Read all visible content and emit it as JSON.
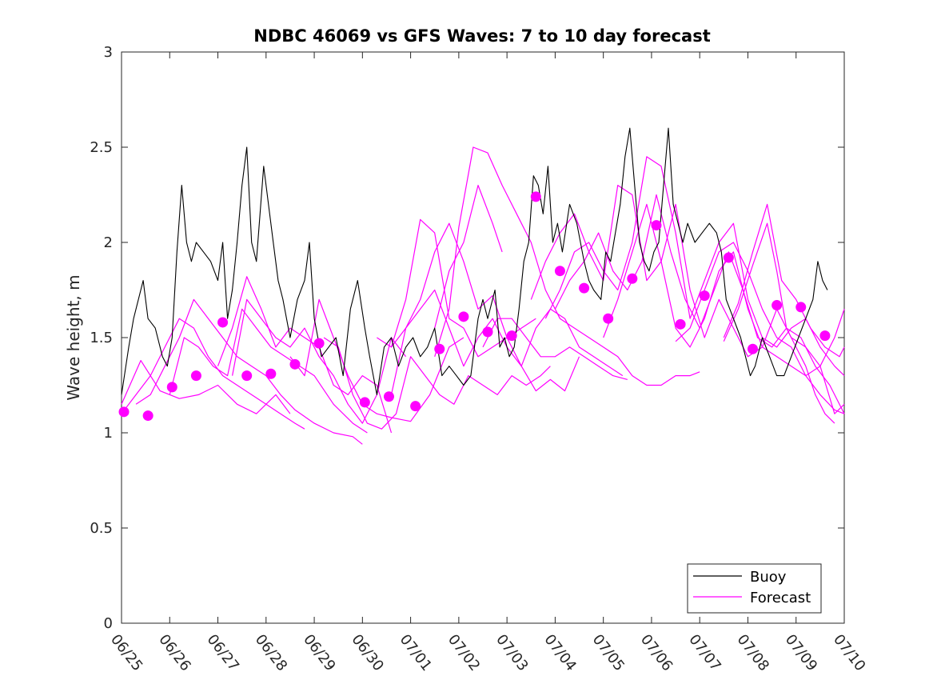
{
  "chart_data": {
    "type": "line",
    "title": "NDBC 46069 vs GFS Waves: 7 to 10 day forecast",
    "ylabel": "Wave height, m",
    "xlabel": "",
    "ylim": [
      0,
      3
    ],
    "xlim": [
      "06/25",
      "07/10"
    ],
    "y_ticks": [
      "0",
      "0.5",
      "1",
      "1.5",
      "2",
      "2.5",
      "3"
    ],
    "x_ticks": [
      "06/25",
      "06/26",
      "06/27",
      "06/28",
      "06/29",
      "06/30",
      "07/01",
      "07/02",
      "07/03",
      "07/04",
      "07/05",
      "07/06",
      "07/07",
      "07/08",
      "07/09",
      "07/10"
    ],
    "grid": false,
    "legend_position": "bottom-right",
    "legend": [
      "Buoy",
      "Forecast"
    ],
    "colors": {
      "buoy": "#000000",
      "forecast": "#ff00ff",
      "axis": "#262626"
    },
    "series": [
      {
        "name": "Buoy",
        "x": [
          0.0,
          0.15,
          0.25,
          0.35,
          0.45,
          0.55,
          0.7,
          0.85,
          0.95,
          1.05,
          1.15,
          1.25,
          1.35,
          1.45,
          1.55,
          1.7,
          1.85,
          2.0,
          2.1,
          2.2,
          2.3,
          2.4,
          2.5,
          2.6,
          2.7,
          2.8,
          2.95,
          3.05,
          3.15,
          3.25,
          3.35,
          3.5,
          3.65,
          3.8,
          3.9,
          4.0,
          4.15,
          4.3,
          4.45,
          4.6,
          4.75,
          4.9,
          5.05,
          5.15,
          5.3,
          5.45,
          5.6,
          5.75,
          5.9,
          6.05,
          6.2,
          6.35,
          6.5,
          6.65,
          6.8,
          6.95,
          7.1,
          7.25,
          7.4,
          7.5,
          7.6,
          7.75,
          7.85,
          7.95,
          8.05,
          8.15,
          8.25,
          8.35,
          8.45,
          8.55,
          8.65,
          8.75,
          8.85,
          8.95,
          9.05,
          9.15,
          9.3,
          9.45,
          9.6,
          9.7,
          9.8,
          9.95,
          10.05,
          10.15,
          10.25,
          10.35,
          10.45,
          10.55,
          10.65,
          10.75,
          10.85,
          10.95,
          11.05,
          11.15,
          11.25,
          11.35,
          11.45,
          11.55,
          11.65,
          11.75,
          11.9,
          12.05,
          12.2,
          12.35,
          12.45,
          12.55,
          12.7,
          12.85,
          12.95,
          13.05,
          13.15,
          13.3,
          13.45,
          13.6,
          13.75,
          13.9,
          14.05,
          14.2,
          14.35,
          14.45,
          14.55,
          14.65
        ],
        "values": [
          1.2,
          1.45,
          1.6,
          1.7,
          1.8,
          1.6,
          1.55,
          1.4,
          1.35,
          1.5,
          1.95,
          2.3,
          2.0,
          1.9,
          2.0,
          1.95,
          1.9,
          1.8,
          2.0,
          1.6,
          1.75,
          2.0,
          2.3,
          2.5,
          2.0,
          1.9,
          2.4,
          2.2,
          2.0,
          1.8,
          1.7,
          1.5,
          1.7,
          1.8,
          2.0,
          1.6,
          1.4,
          1.45,
          1.5,
          1.3,
          1.65,
          1.8,
          1.55,
          1.4,
          1.2,
          1.45,
          1.5,
          1.35,
          1.45,
          1.5,
          1.4,
          1.45,
          1.55,
          1.3,
          1.35,
          1.3,
          1.25,
          1.3,
          1.6,
          1.7,
          1.6,
          1.75,
          1.45,
          1.5,
          1.4,
          1.45,
          1.65,
          1.9,
          2.0,
          2.35,
          2.3,
          2.15,
          2.4,
          2.0,
          2.1,
          1.95,
          2.2,
          2.1,
          1.9,
          1.8,
          1.75,
          1.7,
          1.95,
          1.9,
          2.05,
          2.2,
          2.45,
          2.6,
          2.3,
          2.0,
          1.9,
          1.85,
          1.95,
          2.0,
          2.3,
          2.6,
          2.2,
          2.1,
          2.0,
          2.1,
          2.0,
          2.05,
          2.1,
          2.05,
          1.95,
          1.7,
          1.6,
          1.5,
          1.4,
          1.3,
          1.35,
          1.5,
          1.4,
          1.3,
          1.3,
          1.4,
          1.5,
          1.6,
          1.7,
          1.9,
          1.8,
          1.75
        ]
      },
      {
        "name": "Forecast",
        "segments": [
          {
            "x": [
              0.0,
              0.3,
              0.6,
              0.9,
              1.2,
              1.5,
              1.8,
              2.1,
              2.4,
              2.7,
              3.0,
              3.3,
              3.6,
              3.8
            ],
            "values": [
              1.1,
              1.2,
              1.3,
              1.45,
              1.6,
              1.55,
              1.4,
              1.3,
              1.25,
              1.2,
              1.15,
              1.1,
              1.05,
              1.02
            ]
          },
          {
            "x": [
              0.0,
              0.4,
              0.8,
              1.2,
              1.6,
              2.0,
              2.4,
              2.8,
              3.2,
              3.5
            ],
            "values": [
              1.15,
              1.38,
              1.22,
              1.18,
              1.2,
              1.25,
              1.15,
              1.1,
              1.2,
              1.1
            ]
          },
          {
            "x": [
              0.3,
              0.6,
              0.9,
              1.2,
              1.5,
              1.8,
              2.1,
              2.4,
              2.7,
              3.0,
              3.3,
              3.6,
              4.0,
              4.4,
              4.8,
              5.0
            ],
            "values": [
              1.15,
              1.2,
              1.35,
              1.5,
              1.7,
              1.6,
              1.5,
              1.4,
              1.35,
              1.3,
              1.2,
              1.12,
              1.05,
              1.0,
              0.98,
              0.94
            ]
          },
          {
            "x": [
              1.0,
              1.3,
              1.6,
              1.9,
              2.2,
              2.5,
              2.8,
              3.1,
              3.4,
              3.7,
              4.0,
              4.4,
              4.8,
              5.1
            ],
            "values": [
              1.2,
              1.5,
              1.45,
              1.35,
              1.3,
              1.65,
              1.55,
              1.45,
              1.4,
              1.35,
              1.3,
              1.15,
              1.05,
              1.0
            ]
          },
          {
            "x": [
              2.0,
              2.3,
              2.6,
              2.9,
              3.2,
              3.5,
              3.8,
              4.1,
              4.4,
              4.7,
              5.0,
              5.3,
              5.6
            ],
            "values": [
              1.35,
              1.55,
              1.82,
              1.65,
              1.45,
              1.55,
              1.5,
              1.45,
              1.25,
              1.2,
              1.3,
              1.25,
              1.0
            ]
          },
          {
            "x": [
              2.3,
              2.6,
              2.9,
              3.2,
              3.5,
              3.8,
              4.1,
              4.4,
              4.7,
              5.0,
              5.3,
              5.6,
              5.9
            ],
            "values": [
              1.3,
              1.7,
              1.6,
              1.5,
              1.45,
              1.55,
              1.4,
              1.3,
              1.15,
              1.05,
              1.2,
              1.5,
              1.4
            ]
          },
          {
            "x": [
              3.5,
              3.8,
              4.1,
              4.4,
              4.7,
              5.0,
              5.3,
              5.6,
              6.0,
              6.4,
              6.8,
              7.1
            ],
            "values": [
              1.4,
              1.3,
              1.7,
              1.5,
              1.3,
              1.15,
              1.1,
              1.08,
              1.06,
              1.2,
              1.45,
              1.5
            ]
          },
          {
            "x": [
              4.2,
              4.5,
              4.8,
              5.1,
              5.4,
              5.7,
              6.0,
              6.3,
              6.6,
              6.9,
              7.2,
              7.5,
              7.8,
              8.1,
              8.4,
              8.7,
              8.9
            ],
            "values": [
              1.5,
              1.45,
              1.2,
              1.05,
              1.02,
              1.1,
              1.4,
              1.3,
              1.2,
              1.15,
              1.3,
              1.25,
              1.2,
              1.3,
              1.25,
              1.3,
              1.35
            ]
          },
          {
            "x": [
              5.3,
              5.6,
              5.9,
              6.2,
              6.5,
              6.8,
              7.1,
              7.4,
              7.7,
              8.0,
              8.3,
              8.6,
              8.9,
              9.2,
              9.5
            ],
            "values": [
              1.5,
              1.45,
              1.7,
              2.12,
              2.05,
              1.6,
              1.55,
              1.4,
              1.45,
              1.5,
              1.35,
              1.22,
              1.28,
              1.22,
              1.4
            ]
          },
          {
            "x": [
              5.6,
              5.9,
              6.2,
              6.5,
              6.8,
              7.1,
              7.4,
              7.7,
              8.0,
              8.3,
              8.6,
              8.9,
              9.2,
              9.5,
              9.8,
              10.1,
              10.4
            ],
            "values": [
              1.45,
              1.55,
              1.65,
              1.75,
              1.55,
              1.35,
              1.5,
              1.6,
              1.45,
              1.35,
              1.55,
              1.65,
              1.6,
              1.45,
              1.4,
              1.35,
              1.3
            ]
          },
          {
            "x": [
              5.6,
              5.9,
              6.2,
              6.5,
              6.8,
              7.1,
              7.4,
              7.7,
              8.0,
              8.3,
              8.6
            ],
            "values": [
              1.2,
              1.55,
              1.7,
              1.95,
              2.1,
              1.9,
              1.65,
              1.72,
              1.5,
              1.55,
              1.6
            ]
          },
          {
            "x": [
              6.5,
              6.8,
              7.0,
              7.3,
              7.6,
              7.9,
              8.2,
              8.5,
              8.8,
              9.1,
              9.4,
              9.7,
              10.0,
              10.3,
              10.6,
              10.9,
              11.2,
              11.5,
              11.8,
              12.0
            ],
            "values": [
              1.4,
              1.65,
              2.08,
              2.5,
              2.47,
              2.3,
              2.15,
              2.0,
              1.75,
              1.6,
              1.55,
              1.5,
              1.45,
              1.4,
              1.3,
              1.25,
              1.25,
              1.3,
              1.3,
              1.32
            ]
          },
          {
            "x": [
              6.5,
              6.8,
              7.1,
              7.4,
              7.7,
              7.9
            ],
            "values": [
              1.55,
              1.85,
              2.0,
              2.3,
              2.1,
              1.95
            ]
          },
          {
            "x": [
              7.5,
              7.8,
              8.1,
              8.4,
              8.7,
              9.0,
              9.3,
              9.6,
              9.9,
              10.2,
              10.5
            ],
            "values": [
              1.45,
              1.6,
              1.6,
              1.5,
              1.4,
              1.4,
              1.45,
              1.4,
              1.35,
              1.3,
              1.28
            ]
          },
          {
            "x": [
              8.5,
              8.8,
              9.1,
              9.4,
              9.7,
              10.0,
              10.3,
              10.6,
              10.9,
              11.2,
              11.5,
              11.8,
              12.1,
              12.4,
              12.7,
              13.0,
              13.3,
              13.6,
              13.9,
              14.2,
              14.5,
              14.8,
              15.0
            ],
            "values": [
              1.7,
              1.9,
              2.05,
              2.15,
              1.95,
              1.8,
              2.3,
              2.25,
              1.8,
              1.9,
              2.2,
              1.75,
              1.5,
              1.7,
              1.55,
              1.4,
              1.45,
              1.65,
              1.5,
              1.45,
              1.35,
              1.1,
              1.15
            ]
          },
          {
            "x": [
              8.8,
              9.1,
              9.4,
              9.7,
              10.0,
              10.3,
              10.6,
              10.9,
              11.2,
              11.5,
              11.8,
              12.1,
              12.4,
              12.7,
              13.0,
              13.3,
              13.6,
              13.9,
              14.2,
              14.5,
              14.8,
              15.0
            ],
            "values": [
              1.6,
              1.75,
              1.95,
              2.0,
              1.85,
              1.75,
              2.0,
              2.45,
              2.4,
              2.05,
              1.6,
              1.8,
              2.0,
              2.1,
              1.7,
              1.5,
              1.45,
              1.55,
              1.6,
              1.45,
              1.35,
              1.3
            ]
          },
          {
            "x": [
              9.0,
              9.3,
              9.6,
              9.9,
              10.2,
              10.5,
              10.8,
              11.1,
              11.4,
              11.7,
              12.0,
              12.3,
              12.6,
              12.9,
              13.2,
              13.5,
              13.8,
              14.1,
              14.4,
              14.7,
              15.0
            ],
            "values": [
              1.65,
              1.8,
              1.9,
              2.05,
              1.85,
              1.75,
              1.9,
              2.25,
              1.95,
              1.7,
              1.55,
              1.75,
              1.95,
              1.75,
              1.5,
              1.45,
              1.55,
              1.5,
              1.35,
              1.25,
              1.1
            ]
          },
          {
            "x": [
              10.0,
              10.3,
              10.6,
              10.9,
              11.2,
              11.5,
              11.8,
              12.1,
              12.4,
              12.7,
              13.0,
              13.3,
              13.6,
              13.9,
              14.2,
              14.5,
              14.8,
              15.0
            ],
            "values": [
              1.5,
              1.7,
              1.95,
              2.2,
              1.9,
              1.55,
              1.45,
              1.6,
              1.85,
              1.95,
              1.65,
              1.45,
              1.4,
              1.35,
              1.3,
              1.35,
              1.5,
              1.65
            ]
          },
          {
            "x": [
              11.5,
              11.8,
              12.1,
              12.4,
              12.7,
              13.0,
              13.3,
              13.6,
              13.9,
              14.2,
              14.5,
              14.8,
              15.0
            ],
            "values": [
              1.48,
              1.55,
              1.75,
              1.95,
              2.0,
              1.85,
              1.65,
              1.5,
              1.45,
              1.3,
              1.2,
              1.12,
              1.1
            ]
          },
          {
            "x": [
              12.5,
              12.8,
              13.1,
              13.4,
              13.7,
              14.0,
              14.3,
              14.6,
              14.9,
              15.0
            ],
            "values": [
              1.5,
              1.68,
              1.95,
              2.2,
              1.8,
              1.7,
              1.55,
              1.45,
              1.4,
              1.45
            ]
          },
          {
            "x": [
              12.5,
              12.8,
              13.1,
              13.4,
              13.6,
              13.8,
              14.0,
              14.2,
              14.4,
              14.6,
              14.8
            ],
            "values": [
              1.48,
              1.65,
              1.88,
              2.1,
              1.85,
              1.55,
              1.45,
              1.35,
              1.2,
              1.1,
              1.05
            ]
          }
        ],
        "markers": {
          "x": [
            0.05,
            0.55,
            1.05,
            1.55,
            2.1,
            2.6,
            3.1,
            3.6,
            4.1,
            5.05,
            5.55,
            6.1,
            6.6,
            7.1,
            7.6,
            8.1,
            8.6,
            9.1,
            9.6,
            10.1,
            10.6,
            11.1,
            11.6,
            12.1,
            12.6,
            13.1,
            13.6,
            14.1,
            14.6
          ],
          "values": [
            1.11,
            1.09,
            1.24,
            1.3,
            1.58,
            1.3,
            1.31,
            1.36,
            1.47,
            1.16,
            1.19,
            1.14,
            1.44,
            1.61,
            1.53,
            1.51,
            2.24,
            1.85,
            1.76,
            1.6,
            1.81,
            2.09,
            1.57,
            1.72,
            1.92,
            1.44,
            1.67,
            1.66,
            1.51
          ]
        }
      }
    ]
  }
}
